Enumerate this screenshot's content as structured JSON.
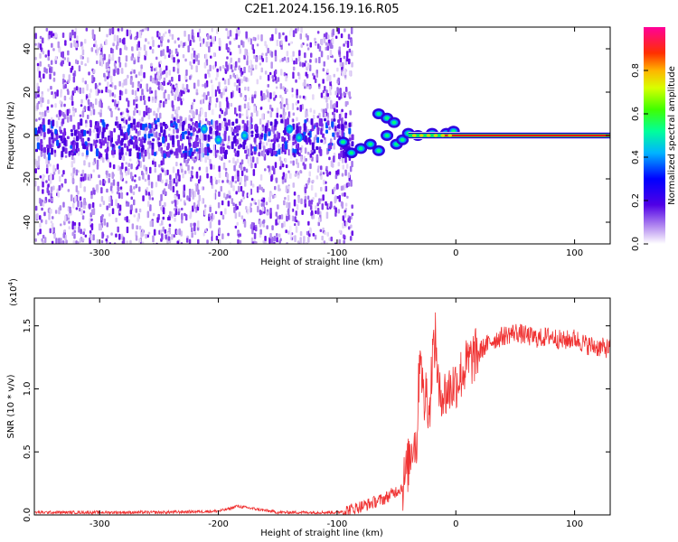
{
  "figure": {
    "title": "C2E1.2024.156.19.16.R05"
  },
  "chart_data": [
    {
      "type": "heatmap",
      "xlabel": "Height of straight line (km)",
      "ylabel": "Frequency (Hz)",
      "xlim": [
        -355,
        130
      ],
      "ylim": [
        -50,
        50
      ],
      "xticks": [
        -300,
        -200,
        -100,
        0,
        100
      ],
      "xtick_labels": [
        "-300",
        "-200",
        "-100",
        "0",
        "100"
      ],
      "yticks": [
        -40,
        -20,
        0,
        20,
        40
      ],
      "ytick_labels": [
        "-40",
        "-20",
        "0",
        "20",
        "40"
      ],
      "colormap": [
        "#ffffff",
        "#d9c7f5",
        "#8a3cf0",
        "#5a00e6",
        "#0000ff",
        "#00c8ff",
        "#00ff80",
        "#80ff00",
        "#ffff00",
        "#ff8000",
        "#ff0000",
        "#ff0099"
      ],
      "description_regions": {
        "noise_region_x": [
          -355,
          -88
        ],
        "signal_line_x": [
          -90,
          130
        ],
        "signal_line_frequency": 0
      },
      "colorbar": {
        "label": "Normalized spectral amplitude",
        "range": [
          0,
          1
        ],
        "ticks": [
          0.0,
          0.2,
          0.4,
          0.6,
          0.8
        ],
        "tick_labels": [
          "0.0",
          "0.2",
          "0.4",
          "0.6",
          "0.8"
        ]
      }
    },
    {
      "type": "line",
      "xlabel": "Height of straight line (km)",
      "ylabel": "SNR (10 * v/v)",
      "scale_label": "(x10",
      "scale_exponent": "4",
      "scale_close": ")",
      "xlim": [
        -355,
        130
      ],
      "ylim": [
        0,
        1.72
      ],
      "xticks": [
        -300,
        -200,
        -100,
        0,
        100
      ],
      "xtick_labels": [
        "-300",
        "-200",
        "-100",
        "0",
        "100"
      ],
      "yticks": [
        0.0,
        0.5,
        1.0,
        1.5
      ],
      "ytick_labels": [
        "0.0",
        "0.5",
        "1.0",
        "1.5"
      ],
      "line_color": "#f03232",
      "series": [
        {
          "x": [
            -355,
            -300,
            -250,
            -200,
            -190,
            -185,
            -150,
            -100,
            -90,
            -75,
            -60,
            -45,
            -40,
            -36,
            -33,
            -30,
            -27,
            -25,
            -22,
            -20,
            -17,
            -14,
            -12,
            -10,
            -5,
            0,
            10,
            20,
            30,
            40,
            50,
            60,
            70,
            80,
            90,
            100,
            110,
            120,
            130
          ],
          "y": [
            0.02,
            0.02,
            0.02,
            0.03,
            0.05,
            0.07,
            0.02,
            0.02,
            0.04,
            0.08,
            0.13,
            0.22,
            0.4,
            0.6,
            0.55,
            1.4,
            0.85,
            1.0,
            0.8,
            1.25,
            1.4,
            0.9,
            1.0,
            0.95,
            1.0,
            1.05,
            1.2,
            1.3,
            1.38,
            1.42,
            1.45,
            1.42,
            1.4,
            1.42,
            1.38,
            1.4,
            1.35,
            1.33,
            1.32
          ]
        }
      ]
    }
  ]
}
